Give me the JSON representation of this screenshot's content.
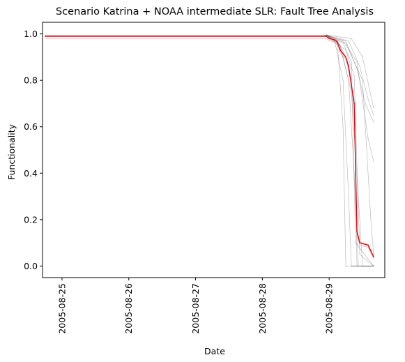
{
  "chart_data": {
    "type": "line",
    "title": "Scenario Katrina + NOAA intermediate SLR: Fault Tree Analysis",
    "xlabel": "Date",
    "ylabel": "Functionality",
    "x_axis_type": "date",
    "xlim": [
      "2005-08-24T17:00",
      "2005-08-29T20:00"
    ],
    "ylim": [
      -0.05,
      1.05
    ],
    "x_ticks": [
      "2005-08-25",
      "2005-08-26",
      "2005-08-27",
      "2005-08-28",
      "2005-08-29"
    ],
    "y_ticks": [
      "0.0",
      "0.2",
      "0.4",
      "0.6",
      "0.8",
      "1.0"
    ],
    "grid": false,
    "legend": "none",
    "colors": {
      "ensemble": "#555555",
      "mean": "#e8000b",
      "band": "#f0a0a0"
    },
    "series": [
      {
        "role": "mean",
        "points": [
          [
            "2005-08-24T18:00",
            0.99
          ],
          [
            "2005-08-28T23:00",
            0.99
          ],
          [
            "2005-08-29T00:00",
            0.98
          ],
          [
            "2005-08-29T02:00",
            0.975
          ],
          [
            "2005-08-29T03:00",
            0.965
          ],
          [
            "2005-08-29T04:00",
            0.93
          ],
          [
            "2005-08-29T06:00",
            0.9
          ],
          [
            "2005-08-29T07:00",
            0.86
          ],
          [
            "2005-08-29T09:00",
            0.7
          ],
          [
            "2005-08-29T10:00",
            0.15
          ],
          [
            "2005-08-29T11:00",
            0.1
          ],
          [
            "2005-08-29T14:00",
            0.09
          ],
          [
            "2005-08-29T16:00",
            0.04
          ]
        ]
      },
      {
        "role": "ensemble",
        "points": [
          [
            "2005-08-24T18:00",
            0.995
          ],
          [
            "2005-08-28T23:00",
            0.995
          ],
          [
            "2005-08-29T03:00",
            0.97
          ],
          [
            "2005-08-29T06:00",
            0.9
          ],
          [
            "2005-08-29T09:00",
            0.72
          ],
          [
            "2005-08-29T10:00",
            0.0
          ],
          [
            "2005-08-29T16:00",
            0.0
          ]
        ]
      },
      {
        "role": "ensemble",
        "points": [
          [
            "2005-08-28T23:00",
            0.995
          ],
          [
            "2005-08-29T04:00",
            0.94
          ],
          [
            "2005-08-29T07:00",
            0.8
          ],
          [
            "2005-08-29T09:00",
            0.4
          ],
          [
            "2005-08-29T10:30",
            0.0
          ],
          [
            "2005-08-29T16:00",
            0.0
          ]
        ]
      },
      {
        "role": "ensemble",
        "points": [
          [
            "2005-08-28T23:00",
            0.995
          ],
          [
            "2005-08-29T05:00",
            0.96
          ],
          [
            "2005-08-29T08:00",
            0.88
          ],
          [
            "2005-08-29T09:30",
            0.1
          ],
          [
            "2005-08-29T16:00",
            0.0
          ]
        ]
      },
      {
        "role": "ensemble",
        "points": [
          [
            "2005-08-28T22:00",
            0.995
          ],
          [
            "2005-08-29T06:00",
            0.97
          ],
          [
            "2005-08-29T10:00",
            0.85
          ],
          [
            "2005-08-29T13:00",
            0.7
          ],
          [
            "2005-08-29T16:00",
            0.62
          ]
        ]
      },
      {
        "role": "ensemble",
        "points": [
          [
            "2005-08-28T23:00",
            0.995
          ],
          [
            "2005-08-29T07:00",
            0.97
          ],
          [
            "2005-08-29T11:00",
            0.86
          ],
          [
            "2005-08-29T14:00",
            0.72
          ],
          [
            "2005-08-29T16:00",
            0.65
          ]
        ]
      },
      {
        "role": "ensemble",
        "points": [
          [
            "2005-08-28T23:00",
            0.995
          ],
          [
            "2005-08-29T08:00",
            0.98
          ],
          [
            "2005-08-29T12:00",
            0.9
          ],
          [
            "2005-08-29T16:00",
            0.68
          ]
        ]
      },
      {
        "role": "ensemble",
        "points": [
          [
            "2005-08-28T23:00",
            0.995
          ],
          [
            "2005-08-29T02:00",
            0.97
          ],
          [
            "2005-08-29T05:00",
            0.8
          ],
          [
            "2005-08-29T07:00",
            0.3
          ],
          [
            "2005-08-29T08:00",
            0.0
          ],
          [
            "2005-08-29T16:00",
            0.0
          ]
        ]
      },
      {
        "role": "ensemble",
        "points": [
          [
            "2005-08-28T23:00",
            0.995
          ],
          [
            "2005-08-29T03:00",
            0.96
          ],
          [
            "2005-08-29T05:00",
            0.6
          ],
          [
            "2005-08-29T06:00",
            0.0
          ],
          [
            "2005-08-29T16:00",
            0.0
          ]
        ]
      },
      {
        "role": "ensemble",
        "points": [
          [
            "2005-08-28T23:00",
            0.995
          ],
          [
            "2005-08-29T04:00",
            0.95
          ],
          [
            "2005-08-29T08:00",
            0.75
          ],
          [
            "2005-08-29T11:00",
            0.2
          ],
          [
            "2005-08-29T12:00",
            0.0
          ],
          [
            "2005-08-29T16:00",
            0.0
          ]
        ]
      },
      {
        "role": "ensemble",
        "points": [
          [
            "2005-08-28T23:00",
            0.995
          ],
          [
            "2005-08-29T06:00",
            0.93
          ],
          [
            "2005-08-29T09:00",
            0.82
          ],
          [
            "2005-08-29T11:00",
            0.05
          ],
          [
            "2005-08-29T16:00",
            0.0
          ]
        ]
      },
      {
        "role": "ensemble",
        "points": [
          [
            "2005-08-28T23:00",
            0.995
          ],
          [
            "2005-08-29T05:00",
            0.97
          ],
          [
            "2005-08-29T10:00",
            0.88
          ],
          [
            "2005-08-29T14:00",
            0.55
          ],
          [
            "2005-08-29T16:00",
            0.45
          ]
        ]
      },
      {
        "role": "ensemble",
        "points": [
          [
            "2005-08-28T23:00",
            0.995
          ],
          [
            "2005-08-29T06:00",
            0.96
          ],
          [
            "2005-08-29T12:00",
            0.8
          ],
          [
            "2005-08-29T15:00",
            0.2
          ],
          [
            "2005-08-29T16:00",
            0.05
          ]
        ]
      }
    ]
  }
}
